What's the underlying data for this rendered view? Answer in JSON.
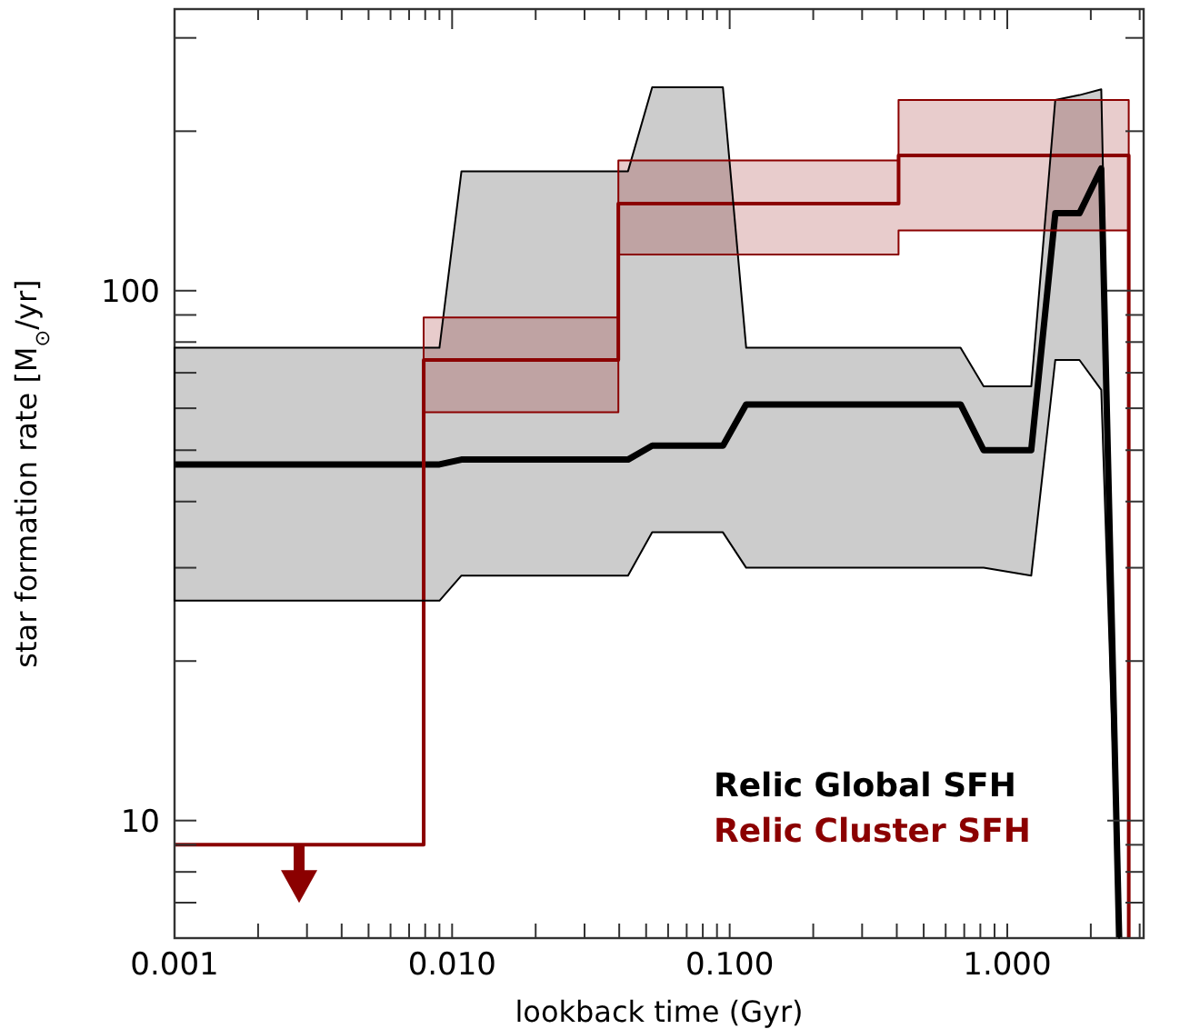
{
  "chart_data": {
    "type": "line",
    "xlabel": "lookback time (Gyr)",
    "ylabel": "star formation rate [M$_{⊙}$/yr]",
    "log": "xy",
    "grid": false,
    "legend": "bottom right",
    "xlim": [
      0.001,
      3.1
    ],
    "ylim": [
      6,
      340
    ],
    "xticks": [
      {
        "value": 0.001,
        "label": "0.001"
      },
      {
        "value": 0.002,
        "label": null
      },
      {
        "value": 0.003,
        "label": null
      },
      {
        "value": 0.004,
        "label": null
      },
      {
        "value": 0.005,
        "label": null
      },
      {
        "value": 0.006,
        "label": null
      },
      {
        "value": 0.007,
        "label": null
      },
      {
        "value": 0.008,
        "label": null
      },
      {
        "value": 0.009,
        "label": null
      },
      {
        "value": 0.01,
        "label": "0.010"
      },
      {
        "value": 0.02,
        "label": null
      },
      {
        "value": 0.03,
        "label": null
      },
      {
        "value": 0.04,
        "label": null
      },
      {
        "value": 0.05,
        "label": null
      },
      {
        "value": 0.06,
        "label": null
      },
      {
        "value": 0.07,
        "label": null
      },
      {
        "value": 0.08,
        "label": null
      },
      {
        "value": 0.09,
        "label": null
      },
      {
        "value": 0.1,
        "label": "0.100"
      },
      {
        "value": 0.2,
        "label": null
      },
      {
        "value": 0.3,
        "label": null
      },
      {
        "value": 0.4,
        "label": null
      },
      {
        "value": 0.5,
        "label": null
      },
      {
        "value": 0.6,
        "label": null
      },
      {
        "value": 0.7,
        "label": null
      },
      {
        "value": 0.8,
        "label": null
      },
      {
        "value": 0.9,
        "label": null
      },
      {
        "value": 1,
        "label": "1.000"
      },
      {
        "value": 2,
        "label": null
      },
      {
        "value": 3,
        "label": null
      }
    ],
    "yticks": [
      {
        "value": 7,
        "label": null
      },
      {
        "value": 8,
        "label": null
      },
      {
        "value": 9,
        "label": null
      },
      10,
      {
        "value": 20,
        "label": null
      },
      {
        "value": 30,
        "label": null
      },
      {
        "value": 40,
        "label": null
      },
      {
        "value": 50,
        "label": null
      },
      {
        "value": 60,
        "label": null
      },
      {
        "value": 70,
        "label": null
      },
      {
        "value": 80,
        "label": null
      },
      {
        "value": 90,
        "label": null
      },
      100,
      {
        "value": 200,
        "label": null
      },
      {
        "value": 300,
        "label": null
      }
    ],
    "series": [
      {
        "name": "Relic Global SFH",
        "type": "line",
        "color": "#000000",
        "x": [
          0.001,
          0.009,
          0.0108,
          0.043,
          0.0526,
          0.0946,
          0.1146,
          0.679,
          0.822,
          1.22,
          1.49,
          1.82,
          2.18,
          2.53
        ],
        "values": [
          47,
          47,
          48,
          48,
          51,
          51,
          61,
          61,
          50,
          50,
          140,
          140,
          170,
          6
        ],
        "lower": [
          26,
          26,
          29,
          29,
          35,
          35,
          30,
          30,
          30,
          29,
          74,
          74,
          65,
          6
        ],
        "upper": [
          78,
          78,
          168,
          168,
          242,
          242,
          78,
          78,
          66,
          66,
          229,
          234,
          240,
          6
        ]
      },
      {
        "name": "Relic Cluster SFH",
        "type": "step",
        "color": "#8b0000",
        "x": [
          0.001,
          0.0079,
          0.0397,
          0.406,
          2.74
        ],
        "values": [
          9,
          74,
          146,
          180,
          6
        ],
        "lower": [
          null,
          59,
          117,
          130,
          130
        ],
        "upper": [
          null,
          89,
          176,
          229,
          229
        ]
      }
    ]
  }
}
